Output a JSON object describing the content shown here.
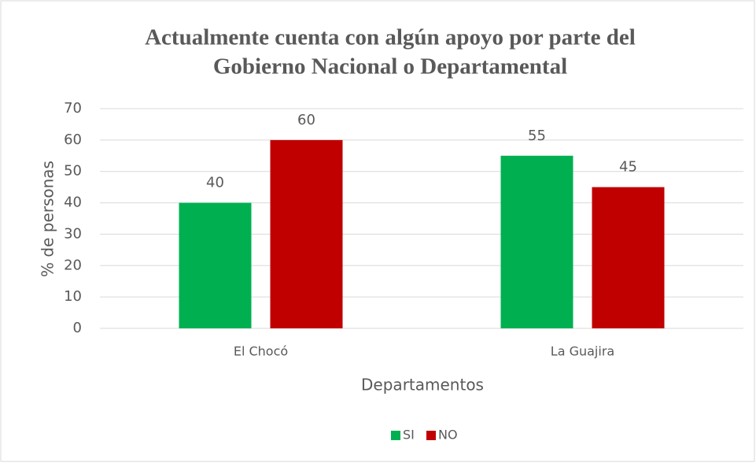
{
  "chart_data": {
    "type": "bar",
    "title_lines": [
      "Actualmente cuenta con algún apoyo por parte del",
      "Gobierno Nacional o Departamental"
    ],
    "x_label": "Departamentos",
    "y_label": "% de personas",
    "categories": [
      "El Chocó",
      "La Guajira"
    ],
    "series": [
      {
        "name": "SI",
        "color": "#00b050",
        "values": [
          40,
          55
        ]
      },
      {
        "name": "NO",
        "color": "#c00000",
        "values": [
          60,
          45
        ]
      }
    ],
    "ylim": [
      0,
      70
    ],
    "yticks": [
      0,
      10,
      20,
      30,
      40,
      50,
      60,
      70
    ],
    "grid": true,
    "legend": "bottom"
  }
}
